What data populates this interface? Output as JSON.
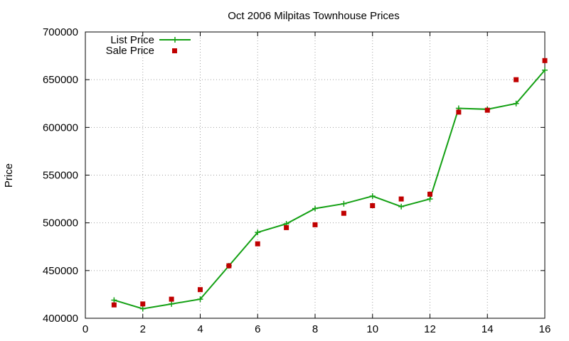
{
  "chart_data": {
    "type": "line",
    "title": "Oct 2006 Milpitas Townhouse Prices",
    "xlabel": "",
    "ylabel": "Price",
    "xlim": [
      0,
      16
    ],
    "ylim": [
      400000,
      700000
    ],
    "x_ticks": [
      0,
      2,
      4,
      6,
      8,
      10,
      12,
      14,
      16
    ],
    "y_ticks": [
      400000,
      450000,
      500000,
      550000,
      600000,
      650000,
      700000
    ],
    "grid": true,
    "legend_position": "top-left",
    "series": [
      {
        "name": "List Price",
        "style": "line-with-plus-markers",
        "color": "#13a013",
        "x": [
          1,
          2,
          3,
          4,
          5,
          6,
          7,
          8,
          9,
          10,
          11,
          12,
          13,
          14,
          15,
          16
        ],
        "y": [
          419000,
          410000,
          415000,
          420000,
          455000,
          490000,
          499000,
          515000,
          520000,
          528000,
          517000,
          525000,
          620000,
          619000,
          625000,
          660000
        ]
      },
      {
        "name": "Sale Price",
        "style": "square-markers",
        "color": "#c00000",
        "x": [
          1,
          2,
          3,
          4,
          5,
          6,
          7,
          8,
          9,
          10,
          11,
          12,
          13,
          14,
          15,
          16
        ],
        "y": [
          414000,
          415000,
          420000,
          430000,
          455000,
          478000,
          495000,
          498000,
          510000,
          518000,
          525000,
          530000,
          616000,
          618000,
          650000,
          670000
        ]
      }
    ]
  }
}
